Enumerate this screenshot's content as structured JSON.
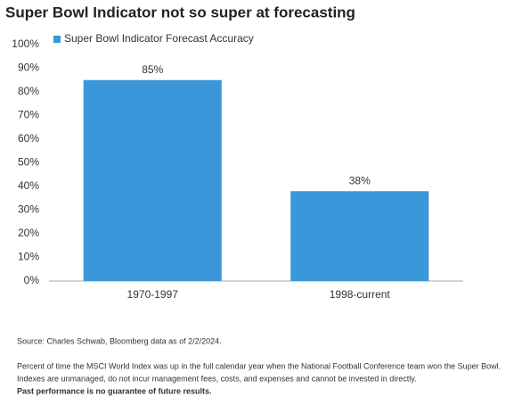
{
  "chart_data": {
    "type": "bar",
    "title": "Super Bowl Indicator not so super at forecasting",
    "categories": [
      "1970-1997",
      "1998-current"
    ],
    "series": [
      {
        "name": "Super Bowl Indicator Forecast Accuracy",
        "color": "#3a97d9",
        "values": [
          85,
          38
        ],
        "value_labels": [
          "85%",
          "38%"
        ]
      }
    ],
    "ylim": [
      0,
      100
    ],
    "yticks": [
      {
        "value": 0,
        "label": "0%"
      },
      {
        "value": 10,
        "label": "10%"
      },
      {
        "value": 20,
        "label": "20%"
      },
      {
        "value": 30,
        "label": "30%"
      },
      {
        "value": 40,
        "label": "40%"
      },
      {
        "value": 50,
        "label": "50%"
      },
      {
        "value": 60,
        "label": "60%"
      },
      {
        "value": 70,
        "label": "70%"
      },
      {
        "value": 80,
        "label": "80%"
      },
      {
        "value": 90,
        "label": "90%"
      },
      {
        "value": 100,
        "label": "100%"
      }
    ],
    "grid": false
  },
  "footer": {
    "source": "Source: Charles Schwab, Bloomberg data as of 2/2/2024.",
    "notes": [
      "Percent of time the MSCI World Index was up in the full calendar year when the National Football Conference team won the Super Bowl.",
      "Indexes are unmanaged, do not incur management fees, costs, and expenses and cannot be invested in directly."
    ],
    "disclaimer": "Past performance is no guarantee of future results."
  }
}
